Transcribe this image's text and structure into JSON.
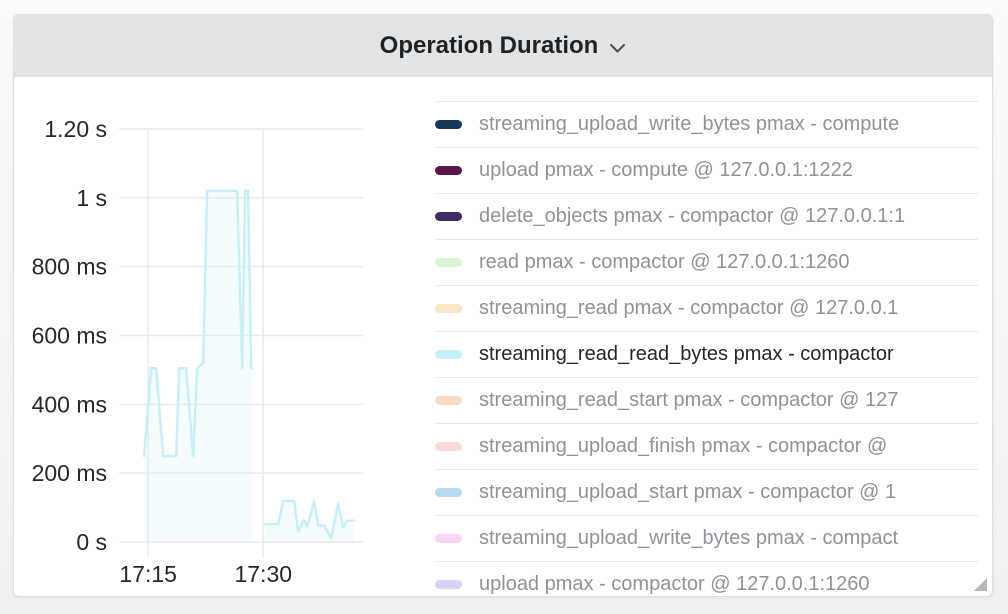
{
  "panel": {
    "title": "Operation Duration",
    "icons": {
      "title_menu": "chevron-down",
      "resize_corner": "corner-triangle"
    }
  },
  "chart_data": {
    "type": "line",
    "title": "Operation Duration",
    "xlabel": "",
    "ylabel": "",
    "grid": true,
    "legend_position": "right",
    "x_axis": {
      "domain_minutes_after_1700": [
        11.2,
        43.0
      ],
      "ticks": [
        {
          "t": 15,
          "label": "17:15"
        },
        {
          "t": 30,
          "label": "17:30"
        }
      ]
    },
    "y_axis": {
      "ylim_ms": [
        0,
        1200
      ],
      "ticks": [
        {
          "ms": 1200,
          "label": "1.20 s"
        },
        {
          "ms": 1000,
          "label": "1 s"
        },
        {
          "ms": 800,
          "label": "800 ms"
        },
        {
          "ms": 600,
          "label": "600 ms"
        },
        {
          "ms": 400,
          "label": "400 ms"
        },
        {
          "ms": 200,
          "label": "200 ms"
        },
        {
          "ms": 0,
          "label": "0 s"
        }
      ]
    },
    "series": [
      {
        "name": "streaming_read_read_bytes pmax - compactor",
        "color": "#c5f0f8",
        "fill": "rgba(197,240,248,0.18)",
        "segments": [
          [
            [
              14.48,
              250
            ],
            [
              15.39,
              505
            ],
            [
              16.04,
              505
            ],
            [
              16.96,
              250
            ],
            [
              18.65,
              250
            ],
            [
              19.04,
              505
            ],
            [
              19.95,
              505
            ],
            [
              20.87,
              250
            ],
            [
              21.39,
              505
            ],
            [
              21.65,
              510
            ],
            [
              22.17,
              520
            ],
            [
              22.69,
              1020
            ],
            [
              26.6,
              1020
            ],
            [
              27.25,
              505
            ],
            [
              27.64,
              1020
            ],
            [
              28.03,
              1020
            ],
            [
              28.43,
              505
            ],
            [
              28.56,
              505
            ]
          ],
          [
            [
              30.25,
              52
            ],
            [
              31.95,
              52
            ],
            [
              32.6,
              119
            ],
            [
              34.03,
              119
            ],
            [
              34.55,
              30
            ],
            [
              35.33,
              65
            ],
            [
              35.73,
              45
            ],
            [
              36.64,
              119
            ],
            [
              37.16,
              48
            ],
            [
              37.94,
              48
            ],
            [
              38.86,
              12
            ],
            [
              39.77,
              112
            ],
            [
              40.42,
              42
            ],
            [
              40.94,
              62
            ],
            [
              41.85,
              62
            ]
          ]
        ]
      }
    ]
  },
  "legend": {
    "items": [
      {
        "label": "streaming_upload_write_bytes pmax - compute",
        "color": "#16395b",
        "highlighted": false
      },
      {
        "label": "upload pmax - compute @ 127.0.0.1:1222",
        "color": "#5a1549",
        "highlighted": false
      },
      {
        "label": "delete_objects pmax - compactor @ 127.0.0.1:1",
        "color": "#3e2b63",
        "highlighted": false
      },
      {
        "label": "read pmax - compactor @ 127.0.0.1:1260",
        "color": "#d9f4d0",
        "highlighted": false
      },
      {
        "label": "streaming_read pmax - compactor @ 127.0.0.1",
        "color": "#f9e7c5",
        "highlighted": false
      },
      {
        "label": "streaming_read_read_bytes pmax - compactor",
        "color": "#c7f1f9",
        "highlighted": true
      },
      {
        "label": "streaming_read_start pmax - compactor @ 127",
        "color": "#f8dcc5",
        "highlighted": false
      },
      {
        "label": "streaming_upload_finish pmax - compactor @",
        "color": "#f8dbd8",
        "highlighted": false
      },
      {
        "label": "streaming_upload_start pmax - compactor @ 1",
        "color": "#b6d8f1",
        "highlighted": false
      },
      {
        "label": "streaming_upload_write_bytes pmax - compact",
        "color": "#f7d6f3",
        "highlighted": false
      },
      {
        "label": "upload pmax - compactor @ 127.0.0.1:1260",
        "color": "#d7d4f3",
        "highlighted": false
      }
    ]
  }
}
